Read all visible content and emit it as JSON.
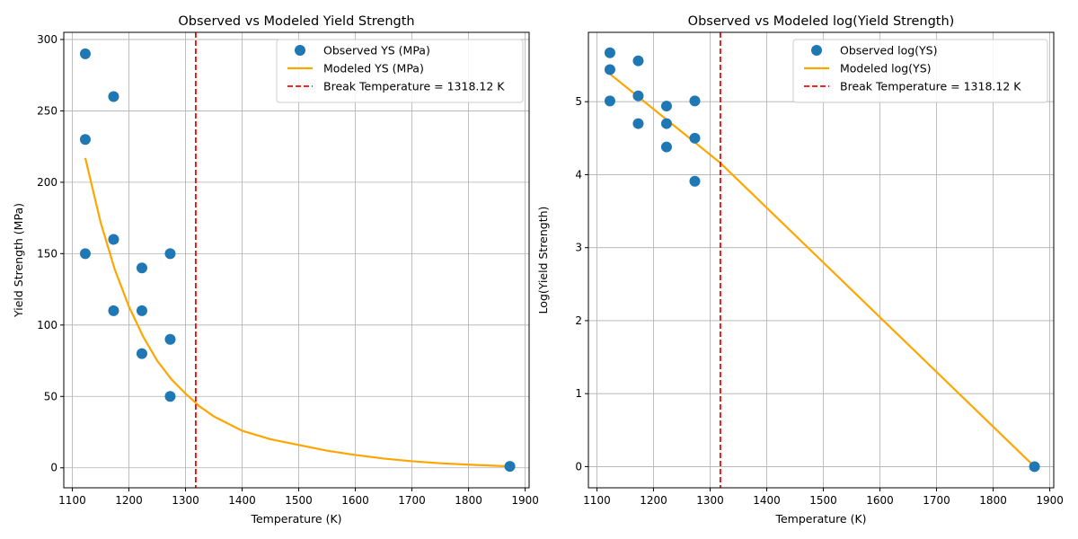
{
  "chart_data": [
    {
      "type": "scatter",
      "title": "Observed vs Modeled Yield Strength",
      "xlabel": "Temperature (K)",
      "ylabel": "Yield Strength (MPa)",
      "xlim": [
        1085,
        1907
      ],
      "ylim": [
        -14,
        305
      ],
      "xticks": [
        1100,
        1200,
        1300,
        1400,
        1500,
        1600,
        1700,
        1800,
        1900
      ],
      "yticks": [
        0,
        50,
        100,
        150,
        200,
        250,
        300
      ],
      "grid": true,
      "legend_position": "top-right",
      "series": [
        {
          "name": "Observed YS (MPa)",
          "kind": "scatter",
          "color": "#1f77b4",
          "x": [
            1123,
            1123,
            1123,
            1173,
            1173,
            1173,
            1223,
            1223,
            1223,
            1273,
            1273,
            1273,
            1873
          ],
          "y": [
            290,
            230,
            150,
            260,
            160,
            110,
            140,
            110,
            80,
            150,
            90,
            50,
            1
          ]
        },
        {
          "name": "Modeled YS (MPa)",
          "kind": "line",
          "color": "#ffa500",
          "x": [
            1123,
            1150,
            1175,
            1200,
            1225,
            1250,
            1275,
            1300,
            1325,
            1350,
            1400,
            1450,
            1500,
            1550,
            1600,
            1650,
            1700,
            1750,
            1800,
            1873
          ],
          "y": [
            217,
            172,
            139,
            113,
            92,
            75,
            62,
            52,
            43,
            36,
            26,
            20,
            16,
            12,
            9,
            6.5,
            4.6,
            3.2,
            2.2,
            1
          ]
        },
        {
          "name": "Break Temperature = 1318.12 K",
          "kind": "vline",
          "color": "#ff0000",
          "x": 1318.12
        }
      ]
    },
    {
      "type": "scatter",
      "title": "Observed vs Modeled log(Yield Strength)",
      "xlabel": "Temperature (K)",
      "ylabel": "Log(Yield Strength)",
      "xlim": [
        1085,
        1907
      ],
      "ylim": [
        -0.29,
        5.95
      ],
      "xticks": [
        1100,
        1200,
        1300,
        1400,
        1500,
        1600,
        1700,
        1800,
        1900
      ],
      "yticks": [
        0,
        1,
        2,
        3,
        4,
        5
      ],
      "grid": true,
      "legend_position": "top-right",
      "series": [
        {
          "name": "Observed log(YS)",
          "kind": "scatter",
          "color": "#1f77b4",
          "x": [
            1123,
            1123,
            1123,
            1173,
            1173,
            1173,
            1223,
            1223,
            1223,
            1273,
            1273,
            1273,
            1873
          ],
          "y": [
            5.67,
            5.44,
            5.01,
            5.56,
            5.08,
            4.7,
            4.94,
            4.7,
            4.38,
            5.01,
            4.5,
            3.91,
            0
          ]
        },
        {
          "name": "Modeled log(YS)",
          "kind": "line",
          "color": "#ffa500",
          "x": [
            1123,
            1318.12,
            1873
          ],
          "y": [
            5.38,
            4.16,
            0
          ]
        },
        {
          "name": "Break Temperature = 1318.12 K",
          "kind": "vline",
          "color": "#ff0000",
          "x": 1318.12
        }
      ]
    }
  ]
}
